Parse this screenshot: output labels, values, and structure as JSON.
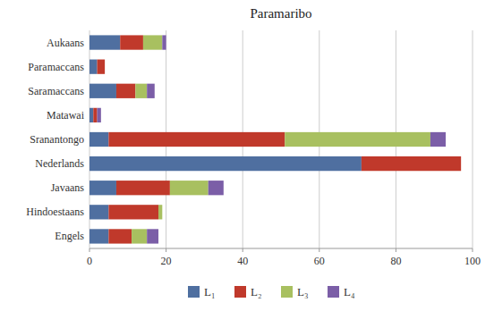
{
  "chart_data": {
    "type": "bar",
    "orientation": "horizontal",
    "stacked": true,
    "title": "Paramaribo",
    "categories": [
      "Aukaans",
      "Paramaccans",
      "Saramaccans",
      "Matawai",
      "Sranantongo",
      "Nederlands",
      "Javaans",
      "Hindoestaans",
      "Engels"
    ],
    "series": [
      {
        "name": "L₁",
        "color": "#4f6fa0",
        "values": [
          8,
          2,
          7,
          1,
          5,
          71,
          7,
          5,
          5
        ]
      },
      {
        "name": "L₂",
        "color": "#c0392b",
        "values": [
          6,
          2,
          5,
          1,
          46,
          26,
          14,
          13,
          6
        ]
      },
      {
        "name": "L₃",
        "color": "#a8c060",
        "values": [
          5,
          0,
          3,
          0,
          38,
          0,
          10,
          1,
          4
        ]
      },
      {
        "name": "L₄",
        "color": "#7b5ea7",
        "values": [
          1,
          0,
          2,
          1,
          4,
          0,
          4,
          0,
          3
        ]
      }
    ],
    "xlim": [
      0,
      100
    ],
    "xticks": [
      0,
      20,
      40,
      60,
      80,
      100
    ],
    "grid": true,
    "legend": "bottom"
  }
}
